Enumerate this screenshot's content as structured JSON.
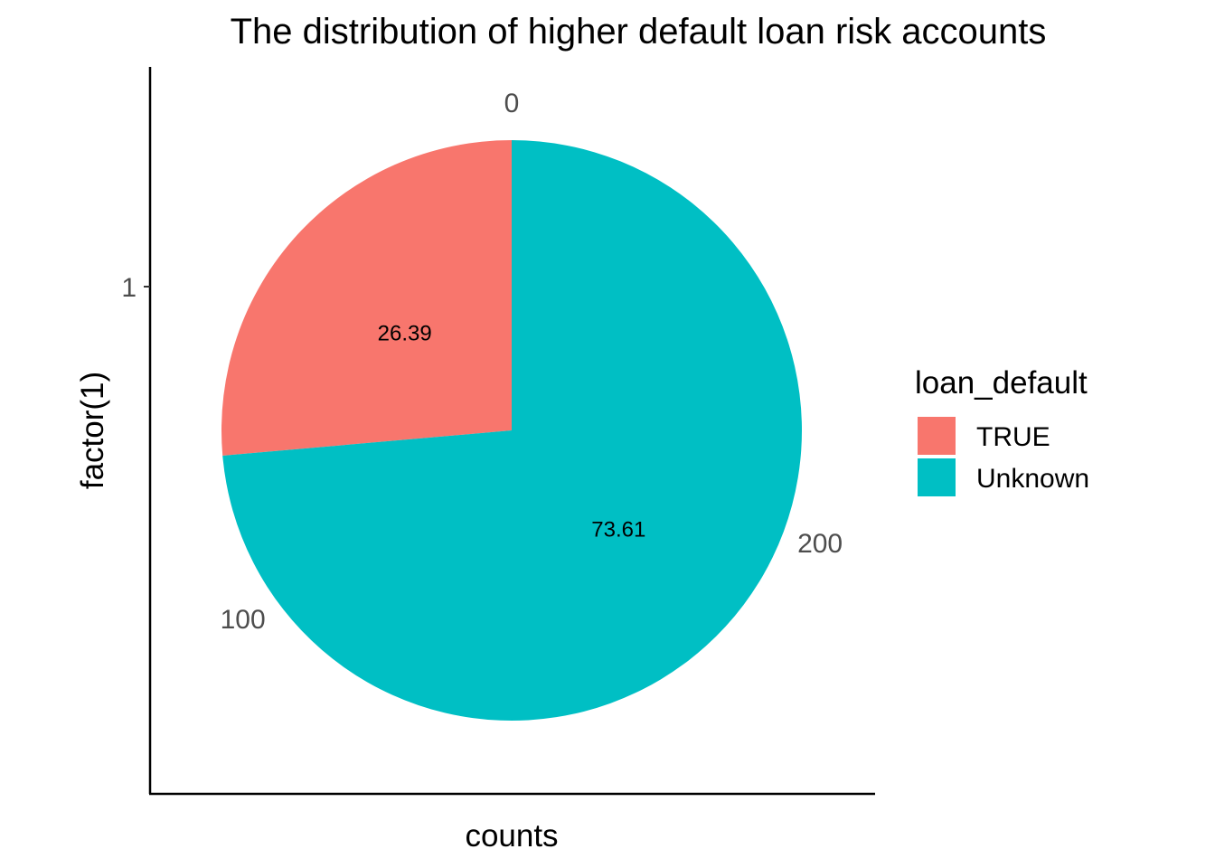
{
  "chart_data": {
    "type": "pie",
    "title": "The distribution of higher default loan risk accounts",
    "xlabel": "counts",
    "ylabel": "factor(1)",
    "y_tick_labels": [
      "1"
    ],
    "angular_ticks": [
      "0",
      "100",
      "200"
    ],
    "angular_range": [
      0,
      288
    ],
    "legend": {
      "title": "loan_default",
      "placement": "right"
    },
    "slices": [
      {
        "label": "TRUE",
        "value": 76,
        "percent_label": "26.39",
        "color": "#F8766D"
      },
      {
        "label": "Unknown",
        "value": 212,
        "percent_label": "73.61",
        "color": "#00BFC4"
      }
    ],
    "grid": false
  }
}
